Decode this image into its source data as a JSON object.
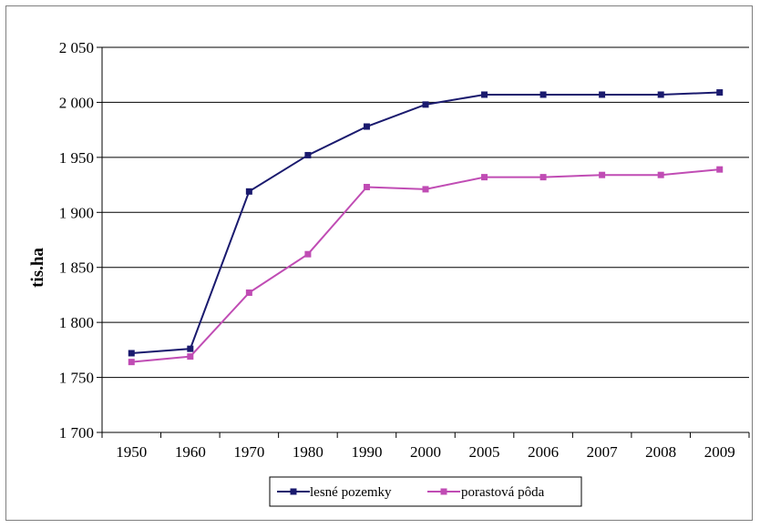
{
  "chart_data": {
    "type": "line",
    "title": "",
    "xlabel": "",
    "ylabel": "tis.ha",
    "categories": [
      "1950",
      "1960",
      "1970",
      "1980",
      "1990",
      "2000",
      "2005",
      "2006",
      "2007",
      "2008",
      "2009"
    ],
    "y_ticks": [
      "1 700",
      "1 750",
      "1 800",
      "1 850",
      "1 900",
      "1 950",
      "2 000",
      "2 050"
    ],
    "ylim": [
      1700,
      2050
    ],
    "grid": "horizontal",
    "legend_position": "bottom",
    "series": [
      {
        "name": "lesné pozemky",
        "color": "#1a1a6e",
        "marker": "square",
        "values": [
          1772,
          1776,
          1919,
          1952,
          1978,
          1998,
          2007,
          2007,
          2007,
          2007,
          2009
        ]
      },
      {
        "name": "porastová pôda",
        "color": "#c04cb4",
        "marker": "square",
        "values": [
          1764,
          1769,
          1827,
          1862,
          1923,
          1921,
          1932,
          1932,
          1934,
          1934,
          1939
        ]
      }
    ]
  }
}
